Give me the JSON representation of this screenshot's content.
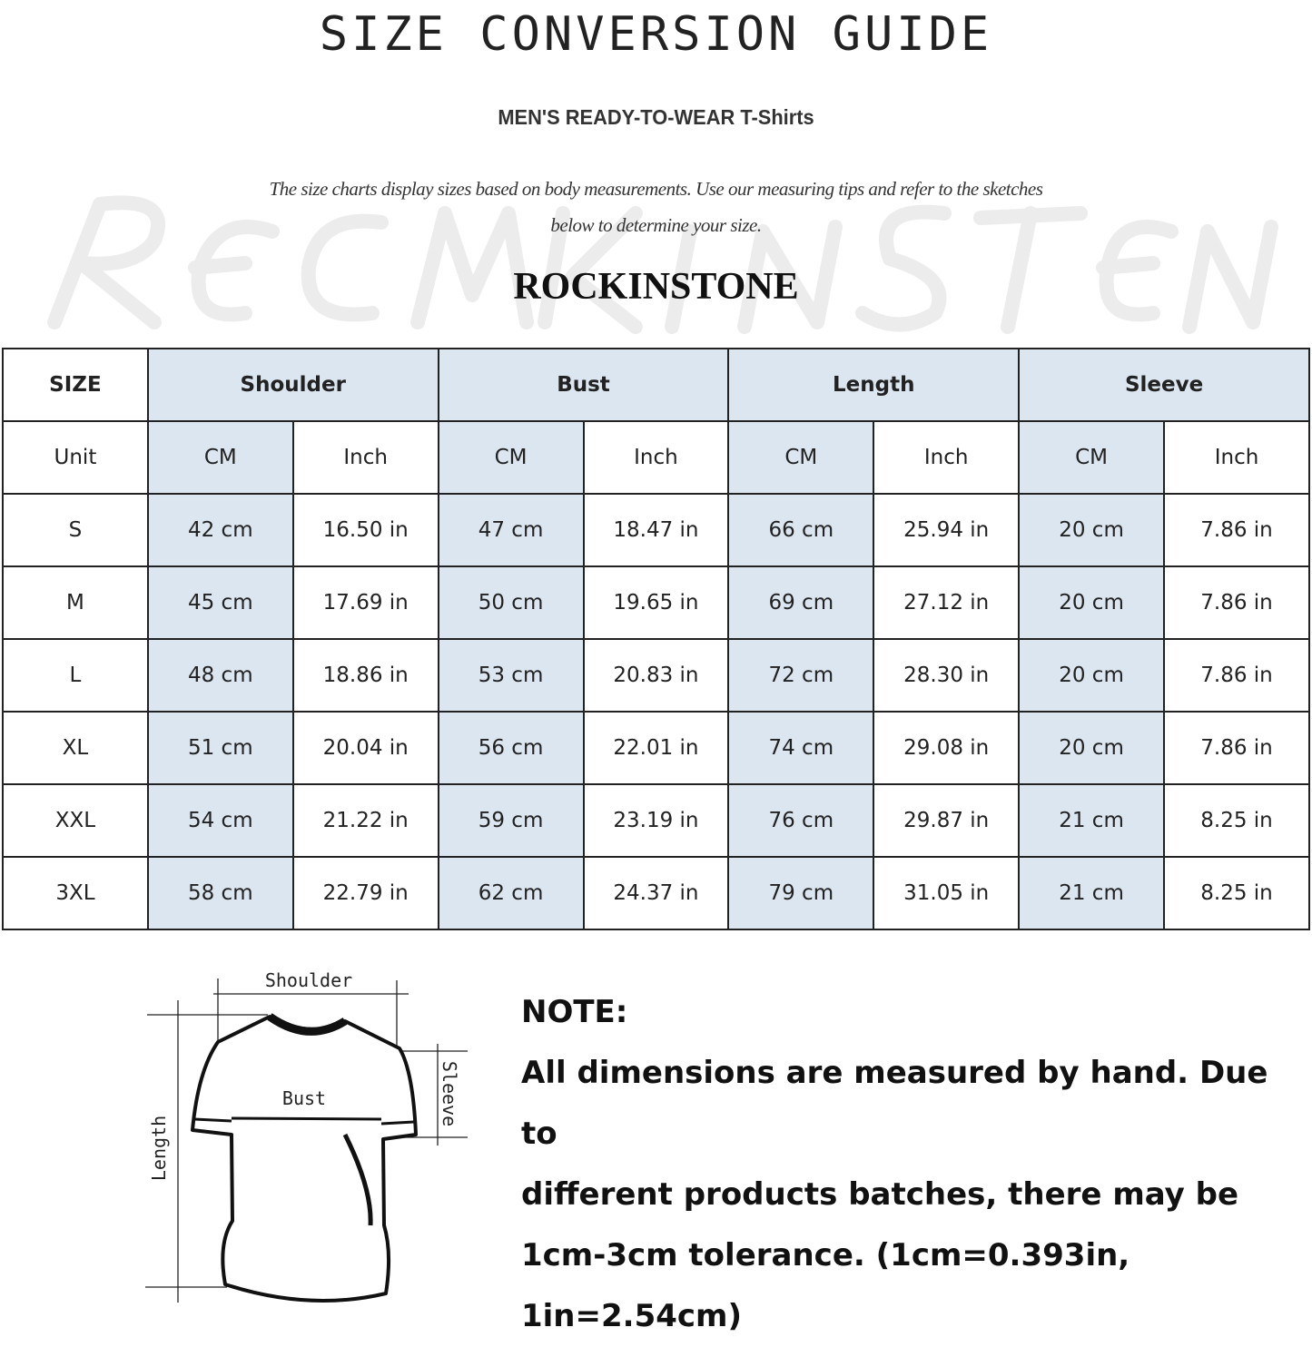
{
  "title": "SIZE CONVERSION GUIDE",
  "subtitle": "MEN'S READY-TO-WEAR T-Shirts",
  "intro_line1": "The size charts display sizes based on body measurements. Use our measuring tips and refer to the sketches",
  "intro_line2": "below to determine your size.",
  "watermark": "ROCKINSTONE",
  "brand": "ROCKINSTONE",
  "table": {
    "header": [
      "SIZE",
      "Shoulder",
      "Bust",
      "Length",
      "Sleeve"
    ],
    "units": [
      "Unit",
      "CM",
      "Inch",
      "CM",
      "Inch",
      "CM",
      "Inch",
      "CM",
      "Inch"
    ],
    "rows": [
      [
        "S",
        "42 cm",
        "16.50 in",
        "47 cm",
        "18.47  in",
        "66 cm",
        "25.94  in",
        "20 cm",
        "7.86  in"
      ],
      [
        "M",
        "45 cm",
        "17.69  in",
        "50 cm",
        "19.65  in",
        "69 cm",
        "27.12  in",
        "20 cm",
        "7.86  in"
      ],
      [
        "L",
        "48 cm",
        "18.86  in",
        "53 cm",
        "20.83  in",
        "72 cm",
        "28.30  in",
        "20 cm",
        "7.86  in"
      ],
      [
        "XL",
        "51 cm",
        "20.04  in",
        "56 cm",
        "22.01  in",
        "74 cm",
        "29.08  in",
        "20 cm",
        "7.86  in"
      ],
      [
        "XXL",
        "54 cm",
        "21.22  in",
        "59 cm",
        "23.19  in",
        "76 cm",
        "29.87  in",
        "21 cm",
        "8.25  in"
      ],
      [
        "3XL",
        "58 cm",
        "22.79  in",
        "62 cm",
        "24.37  in",
        "79 cm",
        "31.05  in",
        "21 cm",
        "8.25  in"
      ]
    ]
  },
  "sketch": {
    "shoulder": "Shoulder",
    "bust": "Bust",
    "sleeve": "Sleeve",
    "length": "Length"
  },
  "note": {
    "heading": "NOTE:",
    "line1": "All dimensions are measured by hand. Due to",
    "line2": "different products batches, there may be",
    "line3": "1cm-3cm tolerance. (1cm=0.393in, 1in=2.54cm)"
  },
  "colors": {
    "header_fill": "#dce6f1",
    "grid": "#222222"
  }
}
